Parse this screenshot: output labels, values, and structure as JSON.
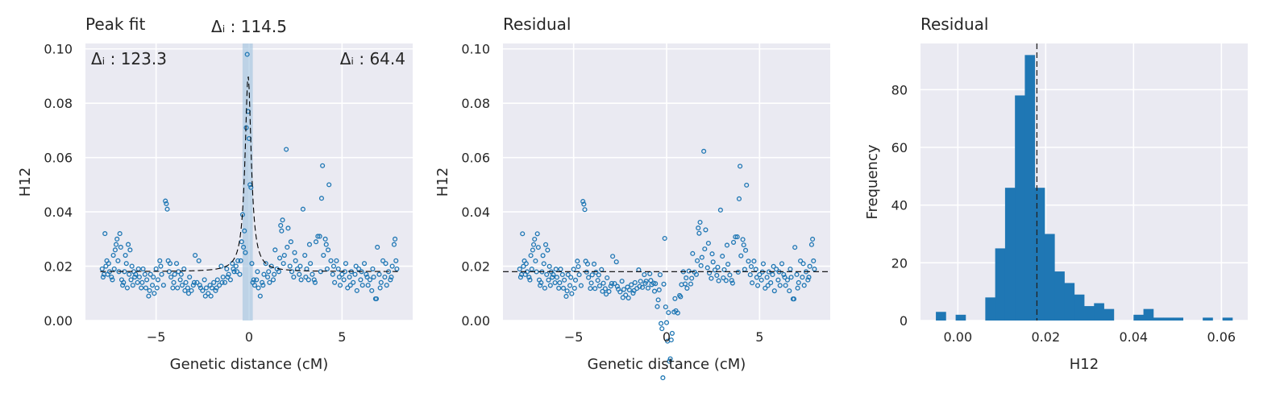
{
  "panels": {
    "peak_fit": {
      "title": "Peak fit",
      "xlabel": "Genetic distance (cM)",
      "ylabel": "H12",
      "annotations": {
        "delta_left": "Δᵢ : 123.3",
        "delta_center": "Δᵢ : 114.5",
        "delta_right": "Δᵢ : 64.4"
      }
    },
    "residual_scatter": {
      "title": "Residual",
      "xlabel": "Genetic distance (cM)",
      "ylabel": "H12"
    },
    "residual_hist": {
      "title": "Residual",
      "xlabel": "H12",
      "ylabel": "Frequency"
    }
  },
  "colors": {
    "points": "#1f77b4",
    "background": "#eaeaf2",
    "band": "#9ec2de"
  },
  "chart_data": [
    {
      "type": "scatter",
      "panel": "peak_fit",
      "title": "Peak fit",
      "xlabel": "Genetic distance (cM)",
      "ylabel": "H12",
      "xlim": [
        -8.8,
        8.8
      ],
      "ylim": [
        0,
        0.102
      ],
      "xticks": [
        -5,
        0,
        5
      ],
      "yticks": [
        0.0,
        0.02,
        0.04,
        0.06,
        0.08,
        0.1
      ],
      "grid": true,
      "baseline": 0.018,
      "peak_center": -0.05,
      "peak_height": 0.072,
      "peak_width": 0.2,
      "band": [
        -0.35,
        0.2
      ],
      "points": [
        [
          -7.9,
          0.019
        ],
        [
          -7.85,
          0.016
        ],
        [
          -7.8,
          0.017
        ],
        [
          -7.75,
          0.032
        ],
        [
          -7.7,
          0.02
        ],
        [
          -7.6,
          0.017
        ],
        [
          -7.55,
          0.021
        ],
        [
          -7.5,
          0.018
        ],
        [
          -7.4,
          0.016
        ],
        [
          -7.3,
          0.024
        ],
        [
          -7.25,
          0.019
        ],
        [
          -7.2,
          0.026
        ],
        [
          -7.15,
          0.028
        ],
        [
          -7.1,
          0.03
        ],
        [
          -7.05,
          0.022
        ],
        [
          -7.0,
          0.018
        ],
        [
          -6.95,
          0.032
        ],
        [
          -6.9,
          0.027
        ],
        [
          -6.85,
          0.015
        ],
        [
          -6.8,
          0.013
        ],
        [
          -6.75,
          0.014
        ],
        [
          -6.7,
          0.018
        ],
        [
          -6.65,
          0.024
        ],
        [
          -6.6,
          0.021
        ],
        [
          -6.55,
          0.012
        ],
        [
          -6.5,
          0.028
        ],
        [
          -6.45,
          0.017
        ],
        [
          -6.4,
          0.026
        ],
        [
          -6.35,
          0.015
        ],
        [
          -6.3,
          0.02
        ],
        [
          -6.25,
          0.013
        ],
        [
          -6.2,
          0.018
        ],
        [
          -6.1,
          0.017
        ],
        [
          -6.0,
          0.014
        ],
        [
          -5.9,
          0.016
        ],
        [
          -5.8,
          0.012
        ],
        [
          -5.7,
          0.019
        ],
        [
          -5.6,
          0.017
        ],
        [
          -5.5,
          0.015
        ],
        [
          -5.4,
          0.009
        ],
        [
          -5.3,
          0.017
        ],
        [
          -5.2,
          0.013
        ],
        [
          -5.1,
          0.01
        ],
        [
          -5.0,
          0.019
        ],
        [
          -4.9,
          0.015
        ],
        [
          -4.8,
          0.022
        ],
        [
          -4.7,
          0.017
        ],
        [
          -4.6,
          0.013
        ],
        [
          -4.5,
          0.044
        ],
        [
          -4.45,
          0.043
        ],
        [
          -4.4,
          0.041
        ],
        [
          -4.35,
          0.022
        ],
        [
          -4.3,
          0.018
        ],
        [
          -4.2,
          0.016
        ],
        [
          -4.1,
          0.012
        ],
        [
          -4.0,
          0.017
        ],
        [
          -3.9,
          0.021
        ],
        [
          -3.8,
          0.018
        ],
        [
          -3.7,
          0.015
        ],
        [
          -3.6,
          0.013
        ],
        [
          -3.5,
          0.019
        ],
        [
          -3.4,
          0.014
        ],
        [
          -3.3,
          0.012
        ],
        [
          -3.2,
          0.016
        ],
        [
          -3.1,
          0.011
        ],
        [
          -3.0,
          0.013
        ],
        [
          -2.9,
          0.024
        ],
        [
          -2.8,
          0.014
        ],
        [
          -2.7,
          0.022
        ],
        [
          -2.6,
          0.012
        ],
        [
          -2.5,
          0.011
        ],
        [
          -2.4,
          0.015
        ],
        [
          -2.3,
          0.012
        ],
        [
          -2.2,
          0.01
        ],
        [
          -2.1,
          0.013
        ],
        [
          -2.0,
          0.012
        ],
        [
          -1.9,
          0.014
        ],
        [
          -1.8,
          0.011
        ],
        [
          -1.7,
          0.015
        ],
        [
          -1.6,
          0.013
        ],
        [
          -1.5,
          0.02
        ],
        [
          -1.4,
          0.016
        ],
        [
          -1.3,
          0.014
        ],
        [
          -1.2,
          0.019
        ],
        [
          -1.1,
          0.017
        ],
        [
          -1.0,
          0.015
        ],
        [
          -0.9,
          0.021
        ],
        [
          -0.8,
          0.018
        ],
        [
          -0.7,
          0.02
        ],
        [
          -0.6,
          0.022
        ],
        [
          -0.5,
          0.017
        ],
        [
          -0.45,
          0.022
        ],
        [
          -0.4,
          0.029
        ],
        [
          -0.35,
          0.039
        ],
        [
          -0.3,
          0.027
        ],
        [
          -0.25,
          0.033
        ],
        [
          -0.2,
          0.025
        ],
        [
          -0.15,
          0.071
        ],
        [
          -0.1,
          0.098
        ],
        [
          -0.05,
          0.077
        ],
        [
          0.0,
          0.067
        ],
        [
          0.05,
          0.05
        ],
        [
          0.1,
          0.049
        ],
        [
          0.15,
          0.021
        ],
        [
          0.2,
          0.014
        ],
        [
          0.3,
          0.013
        ],
        [
          0.4,
          0.015
        ],
        [
          0.5,
          0.012
        ],
        [
          0.6,
          0.009
        ],
        [
          0.7,
          0.014
        ],
        [
          0.8,
          0.017
        ],
        [
          0.9,
          0.021
        ],
        [
          1.0,
          0.016
        ],
        [
          1.1,
          0.014
        ],
        [
          1.2,
          0.02
        ],
        [
          1.3,
          0.015
        ],
        [
          1.4,
          0.026
        ],
        [
          1.5,
          0.019
        ],
        [
          1.6,
          0.018
        ],
        [
          1.7,
          0.035
        ],
        [
          1.75,
          0.033
        ],
        [
          1.8,
          0.037
        ],
        [
          1.85,
          0.021
        ],
        [
          1.9,
          0.024
        ],
        [
          2.0,
          0.063
        ],
        [
          2.05,
          0.027
        ],
        [
          2.1,
          0.034
        ],
        [
          2.2,
          0.02
        ],
        [
          2.3,
          0.018
        ],
        [
          2.4,
          0.016
        ],
        [
          2.5,
          0.022
        ],
        [
          2.6,
          0.019
        ],
        [
          2.7,
          0.017
        ],
        [
          2.8,
          0.015
        ],
        [
          2.9,
          0.041
        ],
        [
          3.0,
          0.024
        ],
        [
          3.1,
          0.019
        ],
        [
          3.2,
          0.015
        ],
        [
          3.3,
          0.021
        ],
        [
          3.4,
          0.017
        ],
        [
          3.5,
          0.015
        ],
        [
          3.6,
          0.029
        ],
        [
          3.7,
          0.031
        ],
        [
          3.8,
          0.031
        ],
        [
          3.9,
          0.045
        ],
        [
          3.95,
          0.057
        ],
        [
          4.0,
          0.024
        ],
        [
          4.1,
          0.03
        ],
        [
          4.15,
          0.028
        ],
        [
          4.2,
          0.019
        ],
        [
          4.3,
          0.05
        ],
        [
          4.4,
          0.022
        ],
        [
          4.5,
          0.017
        ],
        [
          4.6,
          0.014
        ],
        [
          4.7,
          0.022
        ],
        [
          4.8,
          0.019
        ],
        [
          4.9,
          0.013
        ],
        [
          5.0,
          0.017
        ],
        [
          5.1,
          0.015
        ],
        [
          5.2,
          0.021
        ],
        [
          5.3,
          0.012
        ],
        [
          5.4,
          0.016
        ],
        [
          5.5,
          0.018
        ],
        [
          5.6,
          0.014
        ],
        [
          5.7,
          0.017
        ],
        [
          5.8,
          0.011
        ],
        [
          5.9,
          0.019
        ],
        [
          6.0,
          0.015
        ],
        [
          6.1,
          0.013
        ],
        [
          6.2,
          0.021
        ],
        [
          6.3,
          0.017
        ],
        [
          6.4,
          0.013
        ],
        [
          6.5,
          0.015
        ],
        [
          6.6,
          0.011
        ],
        [
          6.7,
          0.016
        ],
        [
          6.8,
          0.008
        ],
        [
          6.85,
          0.008
        ],
        [
          6.9,
          0.027
        ],
        [
          7.0,
          0.017
        ],
        [
          7.1,
          0.014
        ],
        [
          7.2,
          0.022
        ],
        [
          7.3,
          0.016
        ],
        [
          7.4,
          0.013
        ],
        [
          7.5,
          0.018
        ],
        [
          7.6,
          0.015
        ],
        [
          7.7,
          0.02
        ],
        [
          7.8,
          0.028
        ],
        [
          7.85,
          0.03
        ],
        [
          7.9,
          0.022
        ],
        [
          7.95,
          0.019
        ],
        [
          -7.65,
          0.022
        ],
        [
          -7.35,
          0.015
        ],
        [
          -6.15,
          0.016
        ],
        [
          -5.95,
          0.019
        ],
        [
          -5.75,
          0.014
        ],
        [
          -5.55,
          0.012
        ],
        [
          -5.35,
          0.011
        ],
        [
          -5.15,
          0.016
        ],
        [
          -4.95,
          0.012
        ],
        [
          -4.75,
          0.02
        ],
        [
          -4.25,
          0.021
        ],
        [
          -4.05,
          0.014
        ],
        [
          -3.85,
          0.012
        ],
        [
          -3.65,
          0.017
        ],
        [
          -3.45,
          0.011
        ],
        [
          -3.25,
          0.01
        ],
        [
          -2.95,
          0.014
        ],
        [
          -2.65,
          0.013
        ],
        [
          -2.35,
          0.009
        ],
        [
          -2.05,
          0.009
        ],
        [
          -1.75,
          0.012
        ],
        [
          -1.45,
          0.014
        ],
        [
          -1.15,
          0.016
        ],
        [
          -0.85,
          0.019
        ],
        [
          -0.65,
          0.018
        ],
        [
          0.25,
          0.015
        ],
        [
          0.45,
          0.018
        ],
        [
          0.75,
          0.013
        ],
        [
          1.05,
          0.018
        ],
        [
          1.35,
          0.017
        ],
        [
          1.65,
          0.023
        ],
        [
          2.25,
          0.029
        ],
        [
          2.45,
          0.025
        ],
        [
          2.75,
          0.02
        ],
        [
          3.05,
          0.016
        ],
        [
          3.25,
          0.028
        ],
        [
          3.55,
          0.014
        ],
        [
          3.85,
          0.018
        ],
        [
          4.25,
          0.026
        ],
        [
          4.55,
          0.02
        ],
        [
          4.85,
          0.016
        ],
        [
          5.15,
          0.018
        ],
        [
          5.45,
          0.013
        ],
        [
          5.75,
          0.02
        ],
        [
          6.05,
          0.018
        ],
        [
          6.35,
          0.016
        ],
        [
          6.65,
          0.019
        ],
        [
          7.05,
          0.012
        ],
        [
          7.35,
          0.021
        ],
        [
          7.65,
          0.016
        ]
      ]
    },
    {
      "type": "scatter",
      "panel": "residual_scatter",
      "title": "Residual",
      "xlabel": "Genetic distance (cM)",
      "ylabel": "H12",
      "xlim": [
        -8.8,
        8.8
      ],
      "ylim": [
        0,
        0.102
      ],
      "xticks": [
        -5,
        0,
        5
      ],
      "yticks": [
        0.0,
        0.02,
        0.04,
        0.06,
        0.08,
        0.1
      ],
      "grid": true,
      "baseline": 0.018,
      "peak_center": -0.05,
      "peak_height": 0.072,
      "peak_width": 0.2,
      "residual_of": 0
    },
    {
      "type": "bar",
      "panel": "residual_hist",
      "title": "Residual",
      "xlabel": "H12",
      "ylabel": "Frequency",
      "xlim": [
        -0.0085,
        0.066
      ],
      "ylim": [
        0,
        96
      ],
      "xticks": [
        0.0,
        0.02,
        0.04,
        0.06
      ],
      "yticks": [
        0,
        20,
        40,
        60,
        80
      ],
      "grid": true,
      "bin_width": 0.00225,
      "bins_start": -0.005,
      "counts": [
        3,
        0,
        2,
        0,
        0,
        8,
        25,
        46,
        78,
        92,
        46,
        30,
        17,
        13,
        9,
        5,
        6,
        4,
        0,
        0,
        2,
        4,
        1,
        1,
        1,
        0,
        0,
        1,
        0,
        1
      ],
      "mean_line": 0.018
    }
  ]
}
